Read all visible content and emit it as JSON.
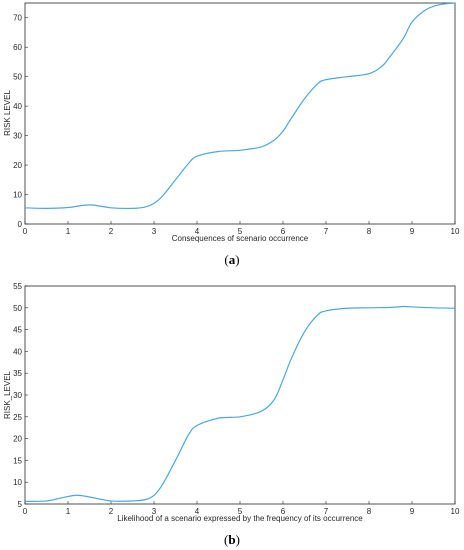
{
  "colors": {
    "line": "#4DA6DE",
    "axis": "#262626",
    "background": "#ffffff"
  },
  "chart_data": [
    {
      "type": "line",
      "caption": {
        "open": "(",
        "letter": "a",
        "close": ")"
      },
      "xlabel": "Consequences of scenario occurrence",
      "ylabel": "RISK LEVEL",
      "xlim": [
        0,
        10
      ],
      "ylim": [
        0,
        75
      ],
      "xticks": [
        "0",
        "1",
        "2",
        "3",
        "4",
        "5",
        "6",
        "7",
        "8",
        "9",
        "10"
      ],
      "yticks": [
        "0",
        "10",
        "20",
        "30",
        "40",
        "50",
        "60",
        "70"
      ],
      "grid": false,
      "series": [
        {
          "x": [
            0,
            0.5,
            1,
            1.5,
            2,
            2.5,
            2.8,
            3,
            3.2,
            3.5,
            3.8,
            4,
            4.5,
            5,
            5.5,
            5.8,
            6,
            6.2,
            6.5,
            6.8,
            7,
            7.5,
            8,
            8.3,
            8.5,
            8.8,
            9,
            9.3,
            9.6,
            10
          ],
          "y": [
            5.5,
            5.3,
            5.6,
            6.5,
            5.5,
            5.3,
            5.8,
            7.0,
            9.5,
            15.0,
            20.5,
            23.0,
            24.6,
            25.0,
            26.2,
            28.5,
            31.5,
            36.0,
            42.5,
            47.5,
            49.0,
            50.0,
            51.0,
            53.5,
            57.0,
            63.0,
            68.5,
            72.5,
            74.3,
            75.0
          ]
        }
      ]
    },
    {
      "type": "line",
      "caption": {
        "open": "(",
        "letter": "b",
        "close": ")"
      },
      "xlabel": "Likelihood of a scenario expressed by the frequency of its occurrence",
      "ylabel": "RISK_LEVEL",
      "xlim": [
        0,
        10
      ],
      "ylim": [
        5,
        55
      ],
      "xticks": [
        "0",
        "1",
        "2",
        "3",
        "4",
        "5",
        "6",
        "7",
        "8",
        "9",
        "10"
      ],
      "yticks": [
        "5",
        "10",
        "15",
        "20",
        "25",
        "30",
        "35",
        "40",
        "45",
        "50",
        "55"
      ],
      "grid": false,
      "series": [
        {
          "x": [
            0,
            0.5,
            0.9,
            1.2,
            1.5,
            2,
            2.5,
            2.8,
            3,
            3.2,
            3.5,
            3.8,
            4,
            4.5,
            5,
            5.5,
            5.8,
            6,
            6.2,
            6.5,
            6.8,
            7,
            7.5,
            8,
            8.5,
            8.8,
            9,
            9.5,
            10
          ],
          "y": [
            5.6,
            5.7,
            6.5,
            7.0,
            6.6,
            5.7,
            5.7,
            6.0,
            7.0,
            9.5,
            15.0,
            20.8,
            23.0,
            24.7,
            25.0,
            26.3,
            29.0,
            33.5,
            38.5,
            44.5,
            48.3,
            49.3,
            49.9,
            50.0,
            50.1,
            50.3,
            50.2,
            50.0,
            49.9
          ]
        }
      ]
    }
  ]
}
